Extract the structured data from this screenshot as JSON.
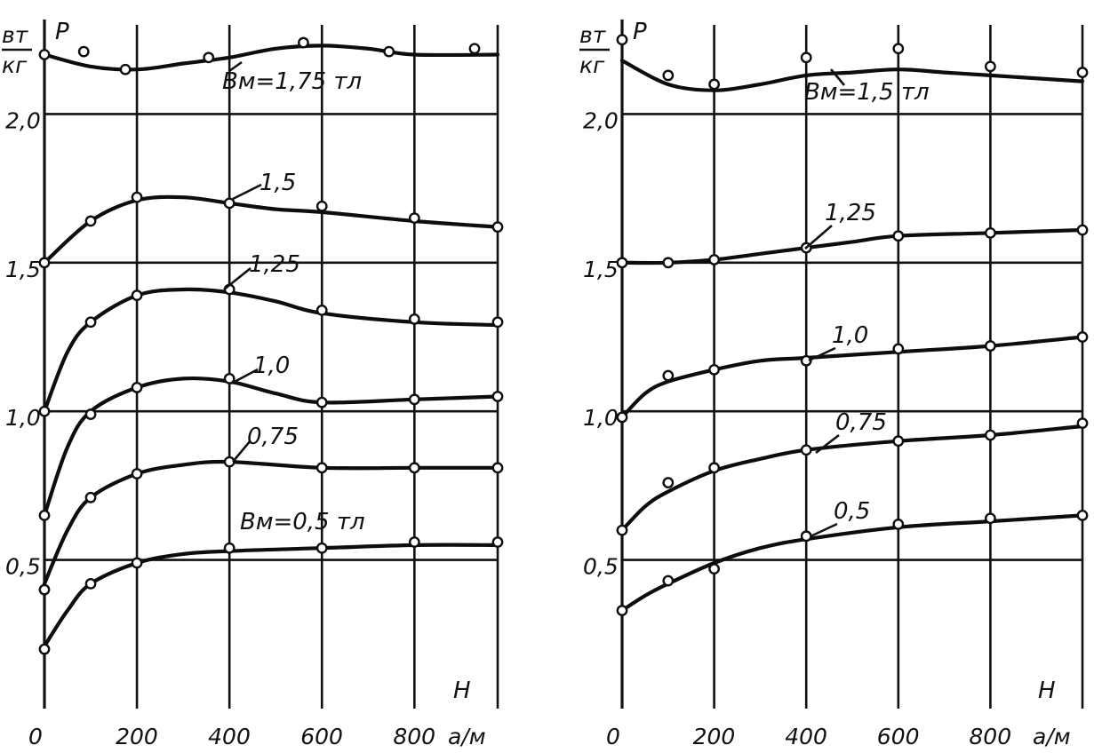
{
  "chart_data": [
    {
      "type": "line",
      "ylabel": "P",
      "yunit_top": "вт",
      "yunit_bottom": "кг",
      "xlabel": "H",
      "xunit": "а/м",
      "origin_label": "0",
      "xlim": [
        0,
        980
      ],
      "ylim": [
        0,
        2.3
      ],
      "xticks": [
        200,
        400,
        600,
        800
      ],
      "xtick_labels": [
        "200",
        "400",
        "600",
        "800"
      ],
      "yticks": [
        0.5,
        1.0,
        1.5,
        2.0
      ],
      "ytick_labels": [
        "0,5",
        "1,0",
        "1,5",
        "2,0"
      ],
      "grid": true,
      "series": [
        {
          "name": "Bм=1,75 тл",
          "curve": [
            [
              0,
              2.2
            ],
            [
              100,
              2.16
            ],
            [
              200,
              2.15
            ],
            [
              300,
              2.17
            ],
            [
              400,
              2.19
            ],
            [
              500,
              2.22
            ],
            [
              600,
              2.23
            ],
            [
              700,
              2.22
            ],
            [
              800,
              2.2
            ],
            [
              980,
              2.2
            ]
          ],
          "points": [
            [
              0,
              2.2
            ],
            [
              85,
              2.21
            ],
            [
              175,
              2.15
            ],
            [
              355,
              2.19
            ],
            [
              560,
              2.24
            ],
            [
              745,
              2.21
            ],
            [
              930,
              2.22
            ]
          ]
        },
        {
          "name": "1,5",
          "curve": [
            [
              0,
              1.5
            ],
            [
              100,
              1.64
            ],
            [
              200,
              1.71
            ],
            [
              300,
              1.72
            ],
            [
              400,
              1.7
            ],
            [
              500,
              1.68
            ],
            [
              600,
              1.67
            ],
            [
              800,
              1.64
            ],
            [
              980,
              1.62
            ]
          ],
          "points": [
            [
              0,
              1.5
            ],
            [
              100,
              1.64
            ],
            [
              200,
              1.72
            ],
            [
              400,
              1.7
            ],
            [
              600,
              1.69
            ],
            [
              800,
              1.65
            ],
            [
              980,
              1.62
            ]
          ]
        },
        {
          "name": "1,25",
          "curve": [
            [
              0,
              1.0
            ],
            [
              50,
              1.2
            ],
            [
              100,
              1.3
            ],
            [
              200,
              1.39
            ],
            [
              300,
              1.41
            ],
            [
              400,
              1.4
            ],
            [
              500,
              1.37
            ],
            [
              600,
              1.33
            ],
            [
              800,
              1.3
            ],
            [
              980,
              1.29
            ]
          ],
          "points": [
            [
              0,
              1.0
            ],
            [
              100,
              1.3
            ],
            [
              200,
              1.39
            ],
            [
              400,
              1.41
            ],
            [
              600,
              1.34
            ],
            [
              800,
              1.31
            ],
            [
              980,
              1.3
            ]
          ]
        },
        {
          "name": "1,0",
          "curve": [
            [
              0,
              0.65
            ],
            [
              50,
              0.88
            ],
            [
              100,
              1.0
            ],
            [
              200,
              1.08
            ],
            [
              300,
              1.11
            ],
            [
              400,
              1.1
            ],
            [
              500,
              1.06
            ],
            [
              600,
              1.03
            ],
            [
              800,
              1.04
            ],
            [
              980,
              1.05
            ]
          ],
          "points": [
            [
              0,
              0.65
            ],
            [
              100,
              0.99
            ],
            [
              200,
              1.08
            ],
            [
              400,
              1.11
            ],
            [
              600,
              1.03
            ],
            [
              800,
              1.04
            ],
            [
              980,
              1.05
            ]
          ]
        },
        {
          "name": "0,75",
          "curve": [
            [
              0,
              0.42
            ],
            [
              50,
              0.6
            ],
            [
              100,
              0.71
            ],
            [
              200,
              0.79
            ],
            [
              300,
              0.82
            ],
            [
              400,
              0.83
            ],
            [
              600,
              0.81
            ],
            [
              800,
              0.81
            ],
            [
              980,
              0.81
            ]
          ],
          "points": [
            [
              0,
              0.4
            ],
            [
              100,
              0.71
            ],
            [
              200,
              0.79
            ],
            [
              400,
              0.83
            ],
            [
              600,
              0.81
            ],
            [
              800,
              0.81
            ],
            [
              980,
              0.81
            ]
          ]
        },
        {
          "name": "Bм=0,5 тл",
          "curve": [
            [
              0,
              0.21
            ],
            [
              50,
              0.33
            ],
            [
              100,
              0.42
            ],
            [
              200,
              0.49
            ],
            [
              300,
              0.52
            ],
            [
              400,
              0.53
            ],
            [
              600,
              0.54
            ],
            [
              800,
              0.55
            ],
            [
              980,
              0.55
            ]
          ],
          "points": [
            [
              0,
              0.2
            ],
            [
              100,
              0.42
            ],
            [
              200,
              0.49
            ],
            [
              400,
              0.54
            ],
            [
              600,
              0.54
            ],
            [
              800,
              0.56
            ],
            [
              980,
              0.56
            ]
          ]
        }
      ]
    },
    {
      "type": "line",
      "ylabel": "P",
      "yunit_top": "вт",
      "yunit_bottom": "кг",
      "xlabel": "H",
      "xunit": "а/м",
      "origin_label": "0",
      "xlim": [
        0,
        1000
      ],
      "ylim": [
        0,
        2.3
      ],
      "xticks": [
        200,
        400,
        600,
        800
      ],
      "xtick_labels": [
        "200",
        "400",
        "600",
        "800"
      ],
      "yticks": [
        0.5,
        1.0,
        1.5,
        2.0
      ],
      "ytick_labels": [
        "0,5",
        "1,0",
        "1,5",
        "2,0"
      ],
      "grid": true,
      "series": [
        {
          "name": "Bм=1,5 тл",
          "curve": [
            [
              0,
              2.18
            ],
            [
              100,
              2.1
            ],
            [
              200,
              2.08
            ],
            [
              300,
              2.1
            ],
            [
              400,
              2.13
            ],
            [
              500,
              2.14
            ],
            [
              600,
              2.15
            ],
            [
              700,
              2.14
            ],
            [
              800,
              2.13
            ],
            [
              1000,
              2.11
            ]
          ],
          "points": [
            [
              0,
              2.25
            ],
            [
              100,
              2.13
            ],
            [
              200,
              2.1
            ],
            [
              400,
              2.19
            ],
            [
              600,
              2.22
            ],
            [
              800,
              2.16
            ],
            [
              1000,
              2.14
            ]
          ]
        },
        {
          "name": "1,25",
          "curve": [
            [
              0,
              1.5
            ],
            [
              100,
              1.5
            ],
            [
              200,
              1.51
            ],
            [
              300,
              1.53
            ],
            [
              400,
              1.55
            ],
            [
              500,
              1.57
            ],
            [
              600,
              1.59
            ],
            [
              800,
              1.6
            ],
            [
              1000,
              1.61
            ]
          ],
          "points": [
            [
              0,
              1.5
            ],
            [
              100,
              1.5
            ],
            [
              200,
              1.51
            ],
            [
              400,
              1.55
            ],
            [
              600,
              1.59
            ],
            [
              800,
              1.6
            ],
            [
              1000,
              1.61
            ]
          ]
        },
        {
          "name": "1,0",
          "curve": [
            [
              0,
              0.98
            ],
            [
              50,
              1.06
            ],
            [
              100,
              1.1
            ],
            [
              200,
              1.14
            ],
            [
              300,
              1.17
            ],
            [
              400,
              1.18
            ],
            [
              600,
              1.2
            ],
            [
              800,
              1.22
            ],
            [
              1000,
              1.25
            ]
          ],
          "points": [
            [
              0,
              0.98
            ],
            [
              100,
              1.12
            ],
            [
              200,
              1.14
            ],
            [
              400,
              1.17
            ],
            [
              600,
              1.21
            ],
            [
              800,
              1.22
            ],
            [
              1000,
              1.25
            ]
          ]
        },
        {
          "name": "0,75",
          "curve": [
            [
              0,
              0.6
            ],
            [
              50,
              0.68
            ],
            [
              100,
              0.73
            ],
            [
              200,
              0.8
            ],
            [
              300,
              0.84
            ],
            [
              400,
              0.87
            ],
            [
              600,
              0.9
            ],
            [
              800,
              0.92
            ],
            [
              1000,
              0.95
            ]
          ],
          "points": [
            [
              0,
              0.6
            ],
            [
              100,
              0.76
            ],
            [
              200,
              0.81
            ],
            [
              400,
              0.87
            ],
            [
              600,
              0.9
            ],
            [
              800,
              0.92
            ],
            [
              1000,
              0.96
            ]
          ]
        },
        {
          "name": "0,5",
          "curve": [
            [
              0,
              0.33
            ],
            [
              50,
              0.38
            ],
            [
              100,
              0.42
            ],
            [
              200,
              0.49
            ],
            [
              300,
              0.54
            ],
            [
              400,
              0.57
            ],
            [
              600,
              0.61
            ],
            [
              800,
              0.63
            ],
            [
              1000,
              0.65
            ]
          ],
          "points": [
            [
              0,
              0.33
            ],
            [
              100,
              0.43
            ],
            [
              200,
              0.47
            ],
            [
              400,
              0.58
            ],
            [
              600,
              0.62
            ],
            [
              800,
              0.64
            ],
            [
              1000,
              0.65
            ]
          ]
        }
      ]
    }
  ]
}
